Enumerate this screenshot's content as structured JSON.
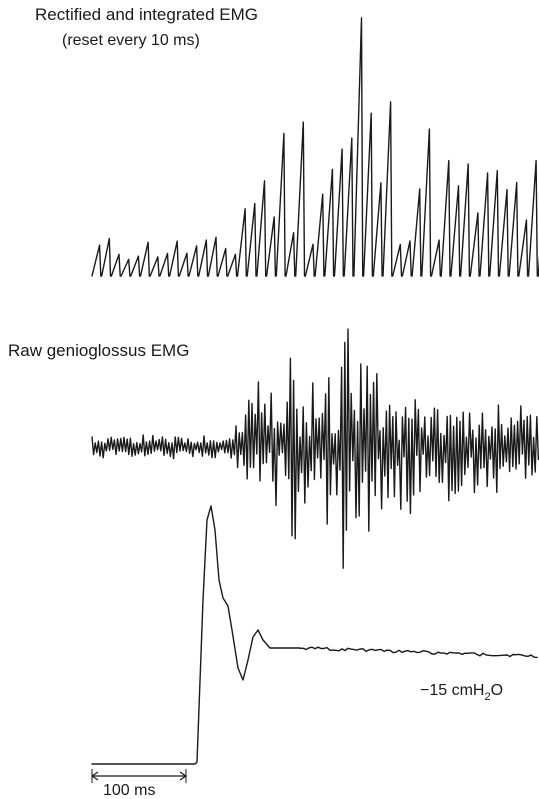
{
  "figure": {
    "rectified_title": "Rectified and integrated EMG",
    "rectified_subtitle": "(reset every 10 ms)",
    "raw_label": "Raw genioglossus EMG",
    "pressure_label": "−15 cmH",
    "pressure_subscript": "2",
    "pressure_suffix": "O",
    "scale_bar_label": "100 ms"
  },
  "colors": {
    "ink": "#1a1a1a",
    "background": "#ffffff"
  }
}
